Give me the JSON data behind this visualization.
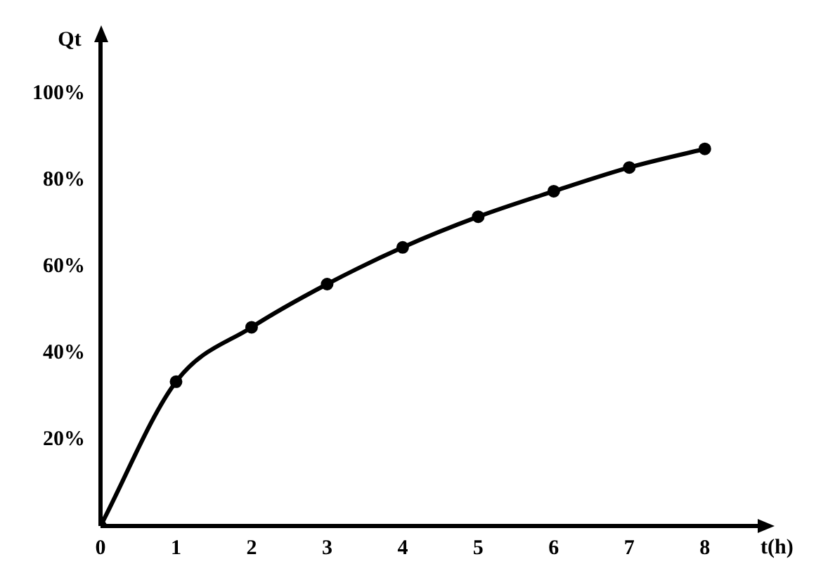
{
  "chart_data": {
    "type": "line",
    "xlabel": "t(h)",
    "ylabel": "Qt",
    "x": [
      0,
      1,
      2,
      3,
      4,
      5,
      6,
      7,
      8
    ],
    "series": [
      {
        "color": "#000000",
        "values": [
          0,
          33.4,
          46,
          56,
          64.5,
          71.6,
          77.5,
          83,
          87.3
        ]
      }
    ],
    "xlim": [
      0,
      8.7
    ],
    "xticks": [
      0,
      1,
      2,
      3,
      4,
      5,
      6,
      7,
      8
    ],
    "ylim": [
      0,
      112
    ],
    "yticks": [
      {
        "value": 0,
        "label": null
      },
      {
        "value": 20,
        "label": "20%"
      },
      {
        "value": 40,
        "label": "40%"
      },
      {
        "value": 60,
        "label": "60%"
      },
      {
        "value": 80,
        "label": "80%"
      },
      {
        "value": 100,
        "label": "100%"
      }
    ],
    "grid": false,
    "legend": false,
    "marker": "circle",
    "line_style": "solid"
  }
}
